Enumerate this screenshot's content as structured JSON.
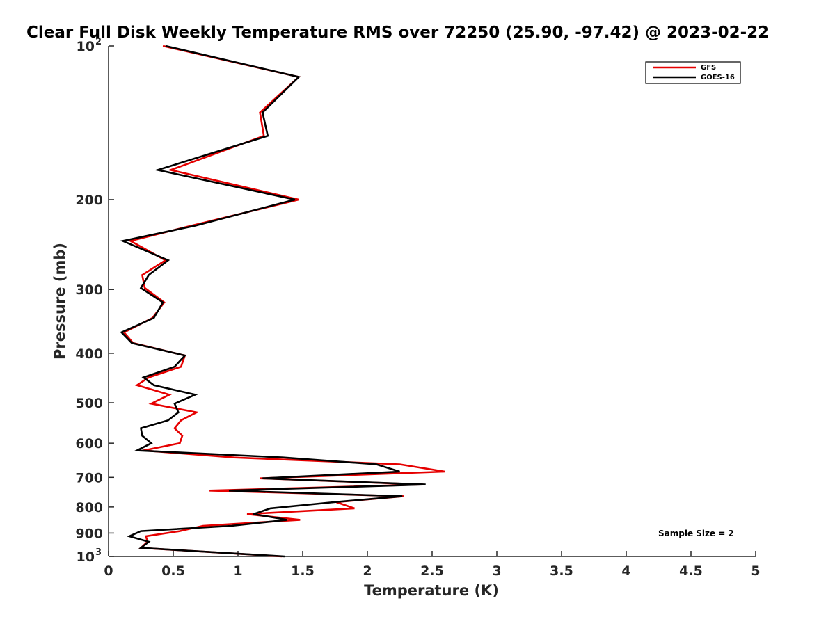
{
  "chart_data": {
    "type": "line",
    "title": "Clear Full Disk Weekly Temperature RMS over 72250 (25.90, -97.42) @ 2023-02-22",
    "xlabel": "Temperature (K)",
    "ylabel": "Pressure (mb)",
    "xlim": [
      0,
      5
    ],
    "ylim": [
      100,
      1000
    ],
    "y_scale": "log",
    "y_reversed": true,
    "grid": false,
    "legend_position": "top-right",
    "x_ticks": [
      "0",
      "0.5",
      "1",
      "1.5",
      "2",
      "2.5",
      "3",
      "3.5",
      "4",
      "4.5",
      "5"
    ],
    "x_tick_values": [
      0,
      0.5,
      1,
      1.5,
      2,
      2.5,
      3,
      3.5,
      4,
      4.5,
      5
    ],
    "y_ticks": [
      {
        "value": 100,
        "base": "10",
        "exp": "2"
      },
      {
        "value": 200,
        "base": "200",
        "exp": ""
      },
      {
        "value": 300,
        "base": "300",
        "exp": ""
      },
      {
        "value": 400,
        "base": "400",
        "exp": ""
      },
      {
        "value": 500,
        "base": "500",
        "exp": ""
      },
      {
        "value": 600,
        "base": "600",
        "exp": ""
      },
      {
        "value": 700,
        "base": "700",
        "exp": ""
      },
      {
        "value": 800,
        "base": "800",
        "exp": ""
      },
      {
        "value": 900,
        "base": "900",
        "exp": ""
      },
      {
        "value": 1000,
        "base": "10",
        "exp": "3"
      }
    ],
    "annotation": "Sample Size = 2",
    "series": [
      {
        "name": "GFS",
        "color": "#e60000",
        "points": [
          [
            0.42,
            100
          ],
          [
            1.47,
            115
          ],
          [
            1.17,
            135
          ],
          [
            1.2,
            150
          ],
          [
            0.48,
            175
          ],
          [
            1.47,
            200
          ],
          [
            0.64,
            225
          ],
          [
            0.17,
            241
          ],
          [
            0.44,
            263
          ],
          [
            0.26,
            281
          ],
          [
            0.28,
            298
          ],
          [
            0.43,
            318
          ],
          [
            0.34,
            341
          ],
          [
            0.12,
            364
          ],
          [
            0.19,
            382
          ],
          [
            0.59,
            404
          ],
          [
            0.56,
            425
          ],
          [
            0.31,
            446
          ],
          [
            0.22,
            462
          ],
          [
            0.47,
            482
          ],
          [
            0.33,
            502
          ],
          [
            0.68,
            522
          ],
          [
            0.56,
            541
          ],
          [
            0.51,
            561
          ],
          [
            0.57,
            580
          ],
          [
            0.55,
            600
          ],
          [
            0.27,
            620
          ],
          [
            0.97,
            640
          ],
          [
            2.25,
            660
          ],
          [
            2.6,
            682
          ],
          [
            1.17,
            703
          ],
          [
            2.43,
            723
          ],
          [
            0.78,
            743
          ],
          [
            2.28,
            762
          ],
          [
            1.76,
            783
          ],
          [
            1.9,
            805
          ],
          [
            1.07,
            826
          ],
          [
            1.48,
            848
          ],
          [
            0.73,
            871
          ],
          [
            0.55,
            892
          ],
          [
            0.29,
            913
          ],
          [
            0.3,
            936
          ],
          [
            0.25,
            962
          ],
          [
            1.34,
            1000
          ]
        ]
      },
      {
        "name": "GOES-16",
        "color": "#000000",
        "points": [
          [
            0.44,
            100
          ],
          [
            1.47,
            115
          ],
          [
            1.19,
            135
          ],
          [
            1.23,
            150
          ],
          [
            0.38,
            175
          ],
          [
            1.44,
            200
          ],
          [
            0.67,
            225
          ],
          [
            0.11,
            241
          ],
          [
            0.46,
            263
          ],
          [
            0.31,
            281
          ],
          [
            0.25,
            298
          ],
          [
            0.42,
            318
          ],
          [
            0.35,
            341
          ],
          [
            0.1,
            364
          ],
          [
            0.18,
            382
          ],
          [
            0.59,
            404
          ],
          [
            0.51,
            425
          ],
          [
            0.27,
            446
          ],
          [
            0.35,
            462
          ],
          [
            0.67,
            482
          ],
          [
            0.51,
            502
          ],
          [
            0.54,
            522
          ],
          [
            0.46,
            541
          ],
          [
            0.25,
            561
          ],
          [
            0.26,
            580
          ],
          [
            0.33,
            600
          ],
          [
            0.22,
            620
          ],
          [
            1.35,
            640
          ],
          [
            2.07,
            660
          ],
          [
            2.25,
            682
          ],
          [
            1.19,
            703
          ],
          [
            2.45,
            723
          ],
          [
            0.93,
            743
          ],
          [
            2.27,
            762
          ],
          [
            1.74,
            783
          ],
          [
            1.25,
            805
          ],
          [
            1.12,
            826
          ],
          [
            1.38,
            848
          ],
          [
            0.95,
            871
          ],
          [
            0.25,
            892
          ],
          [
            0.16,
            913
          ],
          [
            0.31,
            936
          ],
          [
            0.25,
            962
          ],
          [
            1.36,
            1000
          ]
        ]
      }
    ]
  }
}
